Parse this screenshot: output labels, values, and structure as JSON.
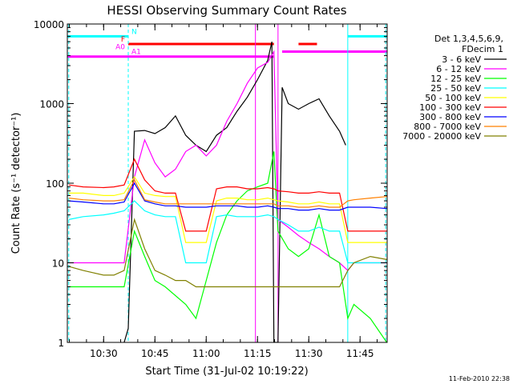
{
  "chart_data": {
    "type": "line",
    "title": "HESSI Observing Summary Count Rates",
    "xlabel": "Start Time (31-Jul-02 10:19:22)",
    "ylabel": "Count Rate (s⁻¹ detector⁻¹)",
    "ylog": true,
    "ylim": [
      1,
      10000
    ],
    "xlim": [
      10.323,
      11.882
    ],
    "x_ticks": [
      10.5,
      10.75,
      11.0,
      11.25,
      11.5,
      11.75
    ],
    "x_tick_labels": [
      "10:30",
      "10:45",
      "11:00",
      "11:15",
      "11:30",
      "11:45"
    ],
    "y_ticks": [
      1,
      10,
      100,
      1000,
      10000
    ],
    "y_tick_labels": [
      "1",
      "10",
      "100",
      "1000",
      "10000"
    ],
    "legend_title": "Det 1,3,4,5,6,9,\nFDecim 1",
    "legend_position": "right-outside",
    "footer": "11-Feb-2010 22:38",
    "flags": [
      {
        "label": "N",
        "color": "#00ffff",
        "segments": [
          [
            10.323,
            10.62
          ],
          [
            11.69,
            11.882
          ]
        ],
        "level": 7000
      },
      {
        "label": "F",
        "color": "#ff0000",
        "segments": [
          [
            10.62,
            11.33
          ],
          [
            11.45,
            11.54
          ]
        ],
        "level": 5600
      },
      {
        "label": "A0",
        "color": "#ff00ff",
        "segments": [
          [
            11.37,
            11.882
          ]
        ],
        "level": 4500
      },
      {
        "label": "A1",
        "color": "#ff00ff",
        "segments": [
          [
            10.323,
            11.33
          ]
        ],
        "level": 3900
      }
    ],
    "vlines": [
      {
        "x": 10.33,
        "color": "#00ffff",
        "style": "dashed"
      },
      {
        "x": 10.62,
        "color": "#00ffff",
        "style": "dashed"
      },
      {
        "x": 11.69,
        "color": "#00ffff",
        "style": "solid"
      },
      {
        "x": 11.875,
        "color": "#00ffff",
        "style": "dashed"
      },
      {
        "x": 11.35,
        "color": "#ff00ff",
        "style": "solid"
      },
      {
        "x": 11.24,
        "color": "#ff00ff",
        "style": "solid"
      }
    ],
    "series": [
      {
        "name": "3 - 6 keV",
        "color": "#000000",
        "x": [
          10.6,
          10.62,
          10.65,
          10.7,
          10.75,
          10.8,
          10.85,
          10.9,
          10.95,
          11.0,
          11.05,
          11.1,
          11.15,
          11.2,
          11.25,
          11.3,
          11.32,
          11.33,
          11.35,
          11.37,
          11.4,
          11.45,
          11.5,
          11.55,
          11.6,
          11.65,
          11.68
        ],
        "values": [
          1,
          1.5,
          450,
          460,
          420,
          500,
          700,
          400,
          300,
          250,
          400,
          500,
          800,
          1200,
          2000,
          3500,
          6000,
          1,
          1,
          1600,
          1000,
          850,
          1000,
          1150,
          700,
          450,
          300
        ]
      },
      {
        "name": "6 - 12 keV",
        "color": "#ff00ff",
        "x": [
          10.33,
          10.4,
          10.5,
          10.55,
          10.6,
          10.65,
          10.7,
          10.75,
          10.8,
          10.85,
          10.9,
          10.95,
          11.0,
          11.05,
          11.1,
          11.15,
          11.2,
          11.25,
          11.3,
          11.33,
          11.35,
          11.4,
          11.45,
          11.5,
          11.55,
          11.6,
          11.65,
          11.69,
          11.72,
          11.8,
          11.88
        ],
        "values": [
          10,
          10,
          10,
          10,
          10,
          120,
          350,
          180,
          120,
          150,
          250,
          300,
          220,
          300,
          600,
          1000,
          1800,
          2800,
          3300,
          4500,
          35,
          28,
          22,
          18,
          15,
          12,
          10,
          8,
          10,
          10,
          10
        ]
      },
      {
        "name": "12 - 25 keV",
        "color": "#00ff00",
        "x": [
          10.33,
          10.4,
          10.5,
          10.55,
          10.6,
          10.65,
          10.7,
          10.75,
          10.8,
          10.9,
          10.95,
          11.0,
          11.05,
          11.1,
          11.15,
          11.2,
          11.25,
          11.3,
          11.33,
          11.35,
          11.4,
          11.45,
          11.5,
          11.55,
          11.6,
          11.65,
          11.69,
          11.72,
          11.8,
          11.88
        ],
        "values": [
          5,
          5,
          5,
          5,
          5,
          25,
          12,
          6,
          5,
          3,
          2,
          6,
          18,
          40,
          60,
          80,
          90,
          100,
          250,
          25,
          15,
          12,
          15,
          40,
          12,
          10,
          2,
          3,
          2,
          1
        ]
      },
      {
        "name": "25 - 50 keV",
        "color": "#00ffff",
        "x": [
          10.33,
          10.4,
          10.5,
          10.55,
          10.6,
          10.65,
          10.7,
          10.75,
          10.8,
          10.85,
          10.9,
          10.95,
          11.0,
          11.05,
          11.1,
          11.15,
          11.2,
          11.25,
          11.3,
          11.33,
          11.35,
          11.4,
          11.45,
          11.5,
          11.55,
          11.6,
          11.65,
          11.69,
          11.72,
          11.8,
          11.88
        ],
        "values": [
          35,
          38,
          40,
          42,
          45,
          60,
          45,
          40,
          38,
          38,
          10,
          10,
          10,
          38,
          40,
          38,
          38,
          38,
          40,
          38,
          35,
          30,
          25,
          25,
          28,
          25,
          25,
          10,
          10,
          10,
          10
        ]
      },
      {
        "name": "50 - 100 keV",
        "color": "#ffff00",
        "x": [
          10.33,
          10.4,
          10.5,
          10.55,
          10.6,
          10.65,
          10.7,
          10.75,
          10.8,
          10.85,
          10.9,
          10.95,
          11.0,
          11.05,
          11.1,
          11.15,
          11.2,
          11.25,
          11.3,
          11.33,
          11.35,
          11.4,
          11.45,
          11.5,
          11.55,
          11.6,
          11.65,
          11.69,
          11.72,
          11.8,
          11.88
        ],
        "values": [
          75,
          75,
          70,
          70,
          75,
          120,
          75,
          70,
          68,
          68,
          18,
          18,
          18,
          60,
          65,
          65,
          62,
          62,
          65,
          62,
          60,
          58,
          55,
          55,
          58,
          55,
          55,
          18,
          18,
          18,
          18
        ]
      },
      {
        "name": "100 - 300 keV",
        "color": "#ff0000",
        "x": [
          10.33,
          10.4,
          10.5,
          10.55,
          10.6,
          10.65,
          10.7,
          10.75,
          10.8,
          10.85,
          10.9,
          10.95,
          11.0,
          11.05,
          11.1,
          11.15,
          11.2,
          11.25,
          11.3,
          11.33,
          11.35,
          11.4,
          11.45,
          11.5,
          11.55,
          11.6,
          11.65,
          11.69,
          11.72,
          11.8,
          11.88
        ],
        "values": [
          95,
          90,
          88,
          90,
          95,
          200,
          110,
          80,
          75,
          75,
          25,
          25,
          25,
          85,
          90,
          90,
          85,
          85,
          88,
          85,
          80,
          78,
          75,
          75,
          78,
          75,
          75,
          25,
          25,
          25,
          25
        ]
      },
      {
        "name": "300 - 800 keV",
        "color": "#0000ff",
        "x": [
          10.33,
          10.4,
          10.5,
          10.55,
          10.6,
          10.65,
          10.7,
          10.75,
          10.8,
          10.85,
          10.9,
          10.95,
          11.0,
          11.05,
          11.1,
          11.15,
          11.2,
          11.25,
          11.3,
          11.33,
          11.35,
          11.4,
          11.45,
          11.5,
          11.55,
          11.6,
          11.65,
          11.69,
          11.72,
          11.8,
          11.88
        ],
        "values": [
          60,
          58,
          55,
          55,
          58,
          100,
          60,
          55,
          52,
          52,
          50,
          50,
          50,
          52,
          52,
          52,
          50,
          50,
          52,
          50,
          48,
          48,
          46,
          46,
          48,
          46,
          46,
          50,
          50,
          50,
          48
        ]
      },
      {
        "name": "800 - 7000 keV",
        "color": "#ff8000",
        "x": [
          10.33,
          10.4,
          10.5,
          10.55,
          10.6,
          10.65,
          10.7,
          10.75,
          10.8,
          10.85,
          10.9,
          10.95,
          11.0,
          11.05,
          11.1,
          11.15,
          11.2,
          11.25,
          11.3,
          11.33,
          11.35,
          11.4,
          11.45,
          11.5,
          11.55,
          11.6,
          11.65,
          11.69,
          11.72,
          11.8,
          11.88
        ],
        "values": [
          65,
          62,
          60,
          60,
          62,
          110,
          62,
          58,
          55,
          55,
          55,
          55,
          55,
          55,
          55,
          55,
          55,
          55,
          55,
          55,
          52,
          52,
          50,
          50,
          52,
          50,
          50,
          60,
          62,
          65,
          68
        ]
      },
      {
        "name": "7000 - 20000 keV",
        "color": "#808000",
        "x": [
          10.33,
          10.4,
          10.5,
          10.55,
          10.6,
          10.65,
          10.7,
          10.75,
          10.8,
          10.85,
          10.9,
          10.95,
          11.0,
          11.05,
          11.1,
          11.15,
          11.2,
          11.25,
          11.3,
          11.33,
          11.35,
          11.4,
          11.45,
          11.5,
          11.55,
          11.6,
          11.65,
          11.69,
          11.72,
          11.8,
          11.88
        ],
        "values": [
          9,
          8,
          7,
          7,
          8,
          35,
          15,
          8,
          7,
          6,
          6,
          5,
          5,
          5,
          5,
          5,
          5,
          5,
          5,
          5,
          5,
          5,
          5,
          5,
          5,
          5,
          5,
          8,
          10,
          12,
          11
        ]
      }
    ]
  }
}
